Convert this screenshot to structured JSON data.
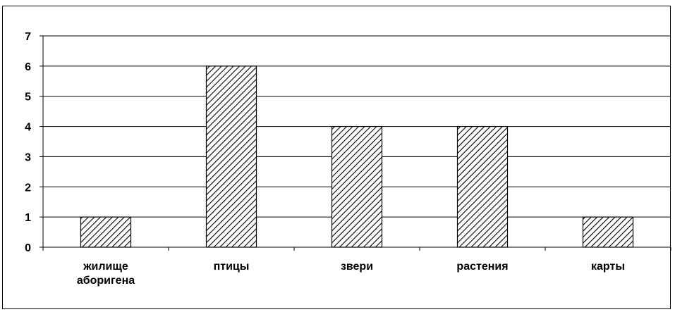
{
  "chart_data": {
    "type": "bar",
    "categories": [
      [
        "жилище",
        "аборигена"
      ],
      [
        "птицы"
      ],
      [
        "звери"
      ],
      [
        "растения"
      ],
      [
        "карты"
      ]
    ],
    "values": [
      1,
      6,
      4,
      4,
      1
    ],
    "ylim": [
      0,
      7
    ],
    "yticks": [
      0,
      1,
      2,
      3,
      4,
      5,
      6,
      7
    ],
    "grid": true,
    "legend": "none",
    "bar_fill": "diagonal-hatch",
    "colors": {
      "bar_stroke": "#000000",
      "hatch": "#000000",
      "gridline": "#000000",
      "background": "#ffffff"
    }
  }
}
